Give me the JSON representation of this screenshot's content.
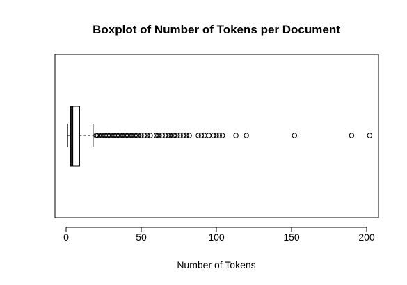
{
  "chart_data": {
    "type": "boxplot",
    "orientation": "horizontal",
    "title": "Boxplot of Number of Tokens per Document",
    "xlabel": "Number of Tokens",
    "ylabel": "",
    "xlim": [
      0,
      205
    ],
    "x_ticks": [
      0,
      50,
      100,
      150,
      200
    ],
    "x_tick_labels": [
      "0",
      "50",
      "100",
      "150",
      "200"
    ],
    "grid": false,
    "legend": "none",
    "box": {
      "min": 1,
      "q1": 3,
      "median": 4,
      "q3": 9,
      "whisker_low": 1,
      "whisker_high": 18
    },
    "outliers": [
      20,
      21,
      22,
      23,
      24,
      25,
      26,
      27,
      28,
      29,
      30,
      31,
      32,
      33,
      34,
      35,
      36,
      37,
      38,
      39,
      40,
      41,
      42,
      43,
      44,
      45,
      46,
      47,
      48,
      50,
      52,
      54,
      56,
      60,
      61,
      62,
      64,
      66,
      68,
      69,
      70,
      71,
      72,
      74,
      76,
      78,
      80,
      82,
      88,
      90,
      92,
      95,
      98,
      100,
      102,
      104,
      113,
      120,
      152,
      190,
      202
    ],
    "colors": {
      "stroke": "#000000",
      "background": "#ffffff"
    }
  }
}
